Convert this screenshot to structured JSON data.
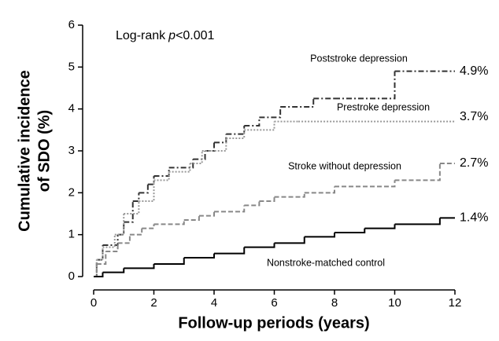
{
  "chart_data": {
    "type": "line",
    "step": true,
    "annotation": [
      "Log-rank",
      "p",
      "<0.001"
    ],
    "xlabel": "Follow-up periods (years)",
    "ylabel": [
      "Cumulative incidence",
      "of SDO (%)"
    ],
    "xlim": [
      0,
      12
    ],
    "xticks": [
      0,
      2,
      4,
      6,
      8,
      10,
      12
    ],
    "ylim": [
      0,
      6
    ],
    "yticks": [
      0,
      1,
      2,
      3,
      4,
      5,
      6
    ],
    "grid": false,
    "series": [
      {
        "name": "Poststroke depression",
        "color": "#333333",
        "dash": "7 3 2 3",
        "x": [
          0,
          0.1,
          0.3,
          0.8,
          1,
          1.3,
          1.5,
          1.8,
          2,
          2.5,
          3.3,
          3.7,
          4,
          4.4,
          5,
          5.5,
          6.2,
          7.3,
          8,
          10,
          12
        ],
        "values": [
          0,
          0.4,
          0.75,
          1.0,
          1.3,
          1.8,
          2.0,
          2.2,
          2.4,
          2.6,
          2.8,
          3.0,
          3.2,
          3.4,
          3.6,
          3.8,
          4.05,
          4.25,
          4.25,
          4.9,
          4.9
        ],
        "value_labels": [
          null,
          null,
          null,
          null,
          null,
          null,
          null,
          null,
          null,
          null,
          null,
          null,
          null,
          null,
          null,
          null,
          null,
          null,
          null,
          null,
          "4.9%"
        ]
      },
      {
        "name": "Prestroke depression",
        "color": "#999999",
        "dash": "2 2",
        "x": [
          0,
          0.1,
          0.3,
          0.7,
          1,
          1.5,
          2,
          2.5,
          3.2,
          3.6,
          4.4,
          5,
          6,
          6.8,
          12
        ],
        "values": [
          0,
          0.4,
          0.7,
          1.0,
          1.5,
          1.8,
          2.3,
          2.5,
          2.7,
          3.0,
          3.3,
          3.5,
          3.7,
          3.7,
          3.7
        ],
        "value_labels": [
          null,
          null,
          null,
          null,
          null,
          null,
          null,
          null,
          null,
          null,
          null,
          null,
          null,
          null,
          "3.7%"
        ]
      },
      {
        "name": "Stroke without depression",
        "color": "#888888",
        "dash": "6 3",
        "x": [
          0,
          0.1,
          0.4,
          0.8,
          1.2,
          1.6,
          2,
          3,
          3.5,
          4,
          5,
          5.5,
          6,
          7,
          8,
          10,
          11.5,
          12
        ],
        "values": [
          0,
          0.3,
          0.6,
          0.8,
          1.0,
          1.15,
          1.25,
          1.35,
          1.45,
          1.55,
          1.7,
          1.8,
          1.9,
          2.0,
          2.15,
          2.3,
          2.7,
          2.7
        ],
        "value_labels": [
          null,
          null,
          null,
          null,
          null,
          null,
          null,
          null,
          null,
          null,
          null,
          null,
          null,
          null,
          null,
          null,
          null,
          "2.7%"
        ]
      },
      {
        "name": "Nonstroke-matched control",
        "color": "#000000",
        "dash": "",
        "x": [
          0,
          0.3,
          1,
          2,
          3,
          4,
          5,
          6,
          7,
          8,
          9,
          10,
          11.5,
          12
        ],
        "values": [
          0,
          0.1,
          0.2,
          0.3,
          0.45,
          0.55,
          0.7,
          0.8,
          0.95,
          1.05,
          1.15,
          1.25,
          1.4,
          1.4
        ],
        "value_labels": [
          null,
          null,
          null,
          null,
          null,
          null,
          null,
          null,
          null,
          null,
          null,
          null,
          null,
          "1.4%"
        ]
      }
    ]
  }
}
